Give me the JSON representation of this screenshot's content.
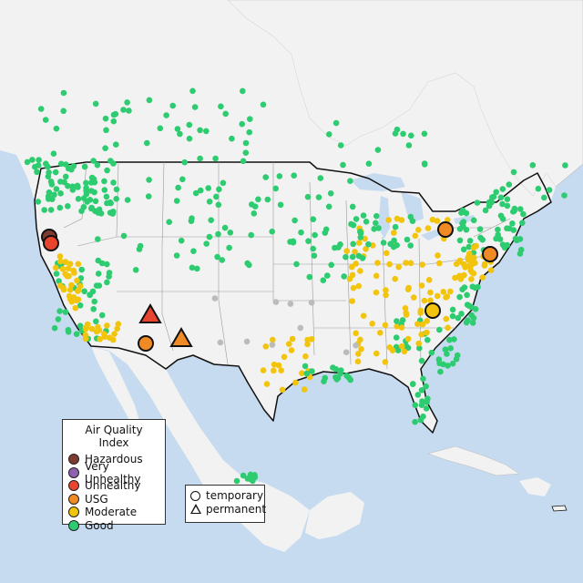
{
  "legend": {
    "title": "Air Quality Index",
    "categories": [
      {
        "label": "Hazardous",
        "color": "#7e3b2f"
      },
      {
        "label": "Very Unhealthy",
        "color": "#8f5fb0"
      },
      {
        "label": "Unhealthy",
        "color": "#e8442e"
      },
      {
        "label": "USG",
        "color": "#f08a24"
      },
      {
        "label": "Moderate",
        "color": "#f2c40b"
      },
      {
        "label": "Good",
        "color": "#2ecc71"
      }
    ]
  },
  "monitor_types": {
    "temporary": "temporary",
    "permanent": "permanent"
  },
  "colors": {
    "land": "#f2f2f2",
    "water": "#c6dbef",
    "border": "#111111",
    "state": "#9a9a9a",
    "no_data": "#bbbbbb"
  }
}
